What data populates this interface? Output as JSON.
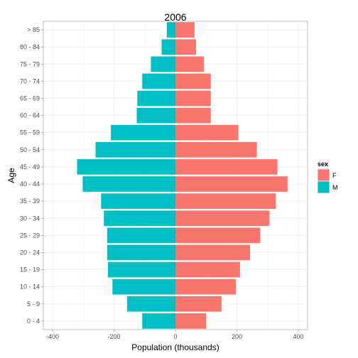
{
  "chart_data": {
    "type": "bar",
    "orientation": "horizontal",
    "title": "2006",
    "xlabel": "Population (thousands)",
    "ylabel": "Age",
    "xlim": [
      -430,
      430
    ],
    "x_ticks": [
      -400,
      -200,
      0,
      200,
      400
    ],
    "x_tick_labels": [
      "-400",
      "-200",
      "0",
      "200",
      "400"
    ],
    "grid": true,
    "legend_position": "right",
    "legend_title": "sex",
    "categories": [
      "0 - 4",
      "5 - 9",
      "10 - 14",
      "15 - 19",
      "20 - 24",
      "25 - 29",
      "30 - 34",
      "35 - 39",
      "40 - 44",
      "45 - 49",
      "50 - 54",
      "55 - 59",
      "60 - 64",
      "65 - 69",
      "70 - 74",
      "75 - 79",
      "80 - 84",
      "> 85"
    ],
    "series": [
      {
        "name": "F",
        "color": "#F8766D",
        "values": [
          100,
          150,
          197,
          210,
          243,
          276,
          306,
          327,
          365,
          332,
          265,
          205,
          115,
          115,
          115,
          93,
          67,
          62
        ]
      },
      {
        "name": "M",
        "color": "#00BFC4",
        "values": [
          -108,
          -157,
          -205,
          -220,
          -222,
          -222,
          -233,
          -242,
          -302,
          -320,
          -260,
          -210,
          -126,
          -124,
          -108,
          -80,
          -45,
          -28
        ]
      }
    ]
  }
}
